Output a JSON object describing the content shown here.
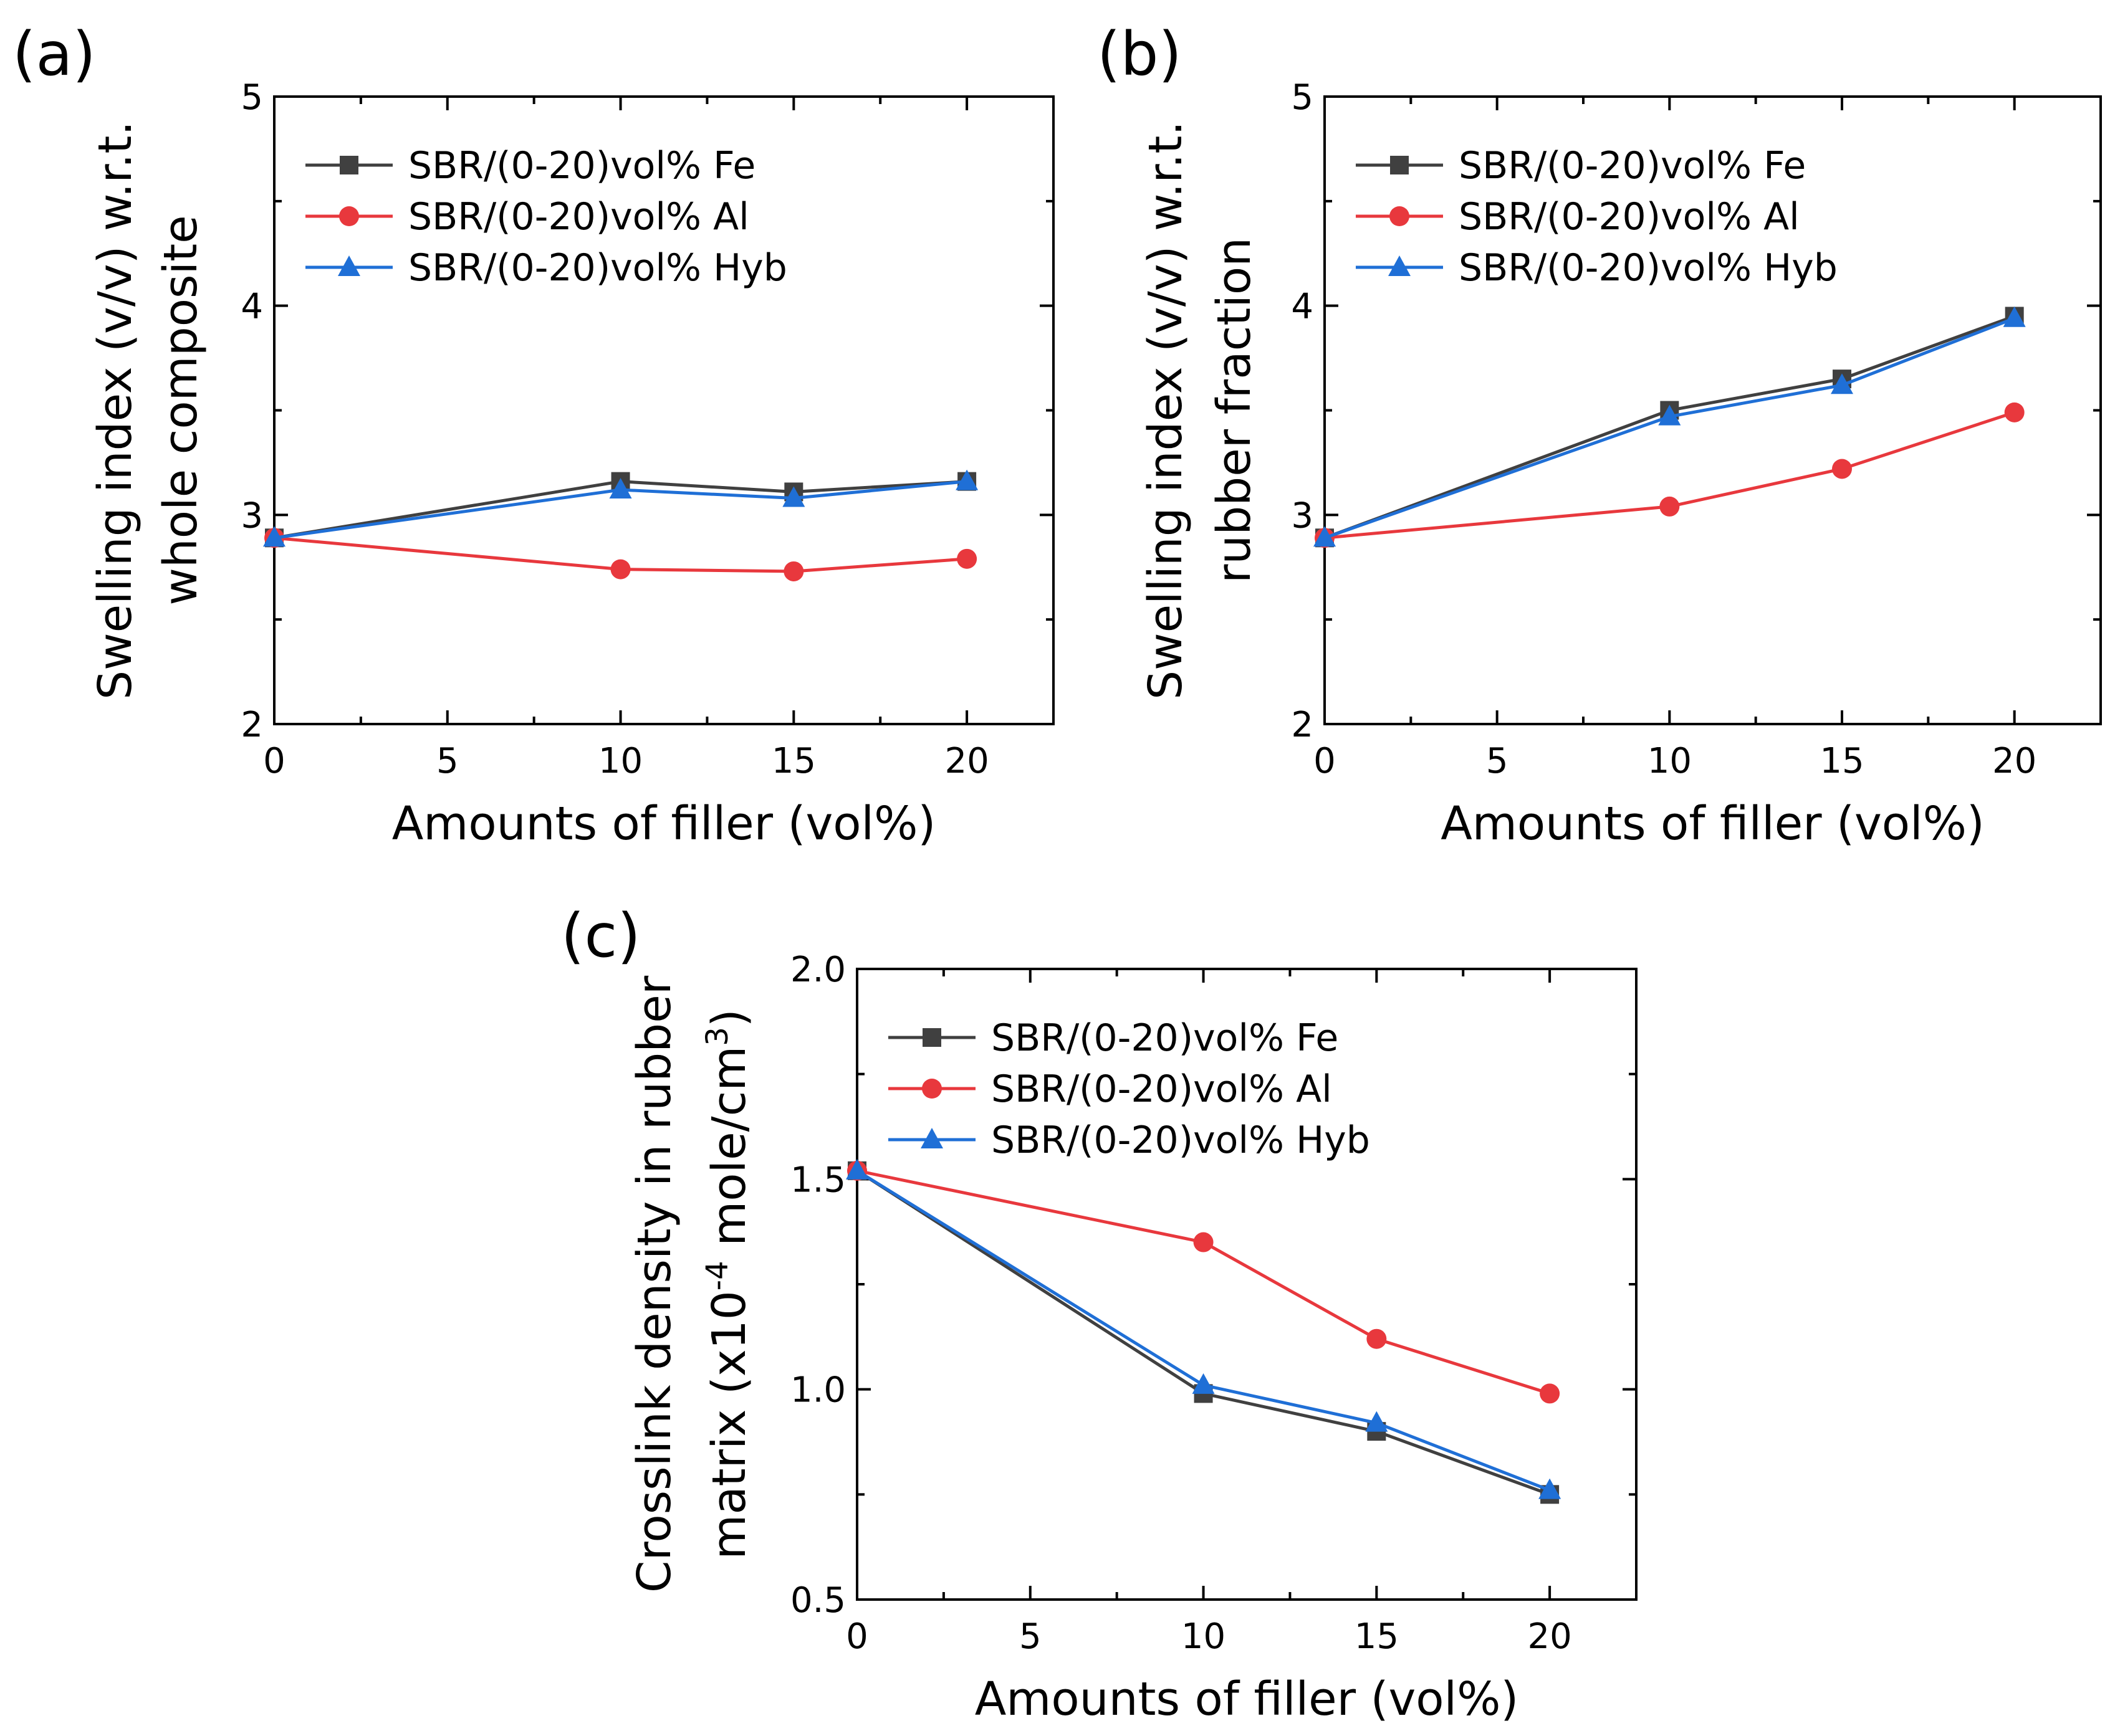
{
  "chart_data": [
    {
      "panel": "(a)",
      "type": "line",
      "xlabel": "Amounts of filler (vol%)",
      "ylabel_lines": [
        "Swelling index (v/v) w.r.t.",
        "whole composite"
      ],
      "xlim": [
        0,
        22.5
      ],
      "ylim": [
        2,
        5
      ],
      "xticks": [
        0,
        5,
        10,
        15,
        20
      ],
      "yticks": [
        2,
        3,
        4,
        5
      ],
      "x": [
        0,
        10,
        15,
        20
      ],
      "legend_position": "top-left",
      "series": [
        {
          "name": "SBR/(0-20)vol% Fe",
          "marker": "square",
          "color": "#404040",
          "values": [
            2.89,
            3.16,
            3.11,
            3.16
          ]
        },
        {
          "name": "SBR/(0-20)vol% Al",
          "marker": "circle",
          "color": "#e8383d",
          "values": [
            2.89,
            2.74,
            2.73,
            2.79
          ]
        },
        {
          "name": "SBR/(0-20)vol% Hyb",
          "marker": "triangle",
          "color": "#1f6fd6",
          "values": [
            2.89,
            3.12,
            3.08,
            3.16
          ]
        }
      ]
    },
    {
      "panel": "(b)",
      "type": "line",
      "xlabel": "Amounts of filler (vol%)",
      "ylabel_lines": [
        "Swelling index (v/v) w.r.t.",
        "rubber fraction"
      ],
      "xlim": [
        0,
        22.5
      ],
      "ylim": [
        2,
        5
      ],
      "xticks": [
        0,
        5,
        10,
        15,
        20
      ],
      "yticks": [
        2,
        3,
        4,
        5
      ],
      "x": [
        0,
        10,
        15,
        20
      ],
      "legend_position": "top-left",
      "series": [
        {
          "name": "SBR/(0-20)vol% Fe",
          "marker": "square",
          "color": "#404040",
          "values": [
            2.89,
            3.5,
            3.65,
            3.95
          ]
        },
        {
          "name": "SBR/(0-20)vol% Al",
          "marker": "circle",
          "color": "#e8383d",
          "values": [
            2.89,
            3.04,
            3.22,
            3.49
          ]
        },
        {
          "name": "SBR/(0-20)vol% Hyb",
          "marker": "triangle",
          "color": "#1f6fd6",
          "values": [
            2.89,
            3.47,
            3.62,
            3.94
          ]
        }
      ]
    },
    {
      "panel": "(c)",
      "type": "line",
      "xlabel": "Amounts of filler (vol%)",
      "ylabel_lines": [
        "Crosslink density in rubber",
        "matrix (x10",
        "-4",
        " mole/cm",
        "3",
        ")"
      ],
      "xlim": [
        0,
        22.5
      ],
      "ylim": [
        0.5,
        2.0
      ],
      "xticks": [
        0,
        5,
        10,
        15,
        20
      ],
      "yticks": [
        0.5,
        1.0,
        1.5,
        2.0
      ],
      "ytick_labels": [
        "0.5",
        "1.0",
        "1.5",
        "2.0"
      ],
      "x": [
        0,
        10,
        15,
        20
      ],
      "legend_position": "top-left",
      "series": [
        {
          "name": "SBR/(0-20)vol% Fe",
          "marker": "square",
          "color": "#404040",
          "values": [
            1.52,
            0.99,
            0.9,
            0.75
          ]
        },
        {
          "name": "SBR/(0-20)vol% Al",
          "marker": "circle",
          "color": "#e8383d",
          "values": [
            1.52,
            1.35,
            1.12,
            0.99
          ]
        },
        {
          "name": "SBR/(0-20)vol% Hyb",
          "marker": "triangle",
          "color": "#1f6fd6",
          "values": [
            1.52,
            1.01,
            0.92,
            0.76
          ]
        }
      ]
    }
  ]
}
